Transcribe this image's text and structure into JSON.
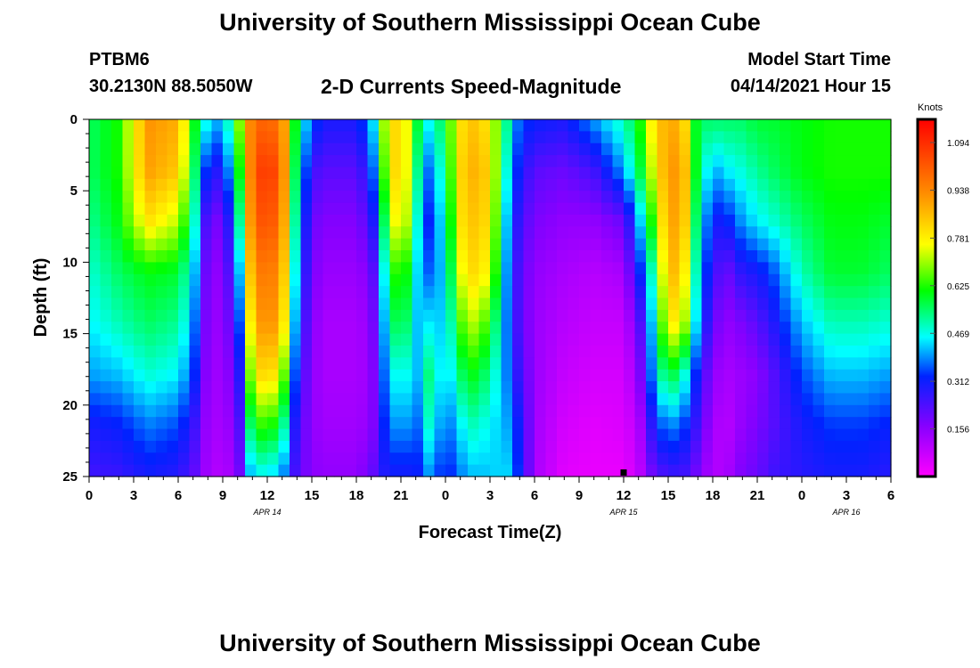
{
  "header": {
    "title": "University of Southern Mississippi Ocean Cube",
    "station_id": "PTBM6",
    "station_coords": "30.2130N  88.5050W",
    "plot_title": "2-D Currents Speed-Magnitude",
    "model_start_label": "Model Start Time",
    "model_start_value": "04/14/2021 Hour 15"
  },
  "footer": {
    "title": "University of Southern Mississippi Ocean Cube"
  },
  "chart_data": {
    "type": "heatmap",
    "xlabel": "Forecast Time(Z)",
    "ylabel": "Depth (ft)",
    "x_range_hours": [
      0,
      54
    ],
    "y_range_ft": [
      0,
      25
    ],
    "y_reversed": true,
    "x_tick_labels": [
      "0",
      "3",
      "6",
      "9",
      "12",
      "15",
      "18",
      "21",
      "0",
      "3",
      "6",
      "9",
      "12",
      "15",
      "18",
      "21",
      "0",
      "3",
      "6"
    ],
    "y_tick_labels": [
      "0",
      "5",
      "10",
      "15",
      "20",
      "25"
    ],
    "y_ticks": [
      0,
      5,
      10,
      15,
      20,
      25
    ],
    "date_labels": [
      {
        "text": "APR 14",
        "hour": 12
      },
      {
        "text": "APR 15",
        "hour": 36
      },
      {
        "text": "APR 16",
        "hour": 51
      }
    ],
    "current_time_hour": 36,
    "colorbar": {
      "unit": "Knots",
      "min": 0.0,
      "max": 1.17,
      "tick_labels": [
        "1.094",
        "0.938",
        "0.781",
        "0.625",
        "0.469",
        "0.312",
        "0.156"
      ],
      "ticks": [
        1.094,
        0.938,
        0.781,
        0.625,
        0.469,
        0.312,
        0.156
      ]
    },
    "grid": false,
    "columns": [
      {
        "x": 0,
        "v": [
          0.55,
          0.55,
          0.52,
          0.48,
          0.45,
          0.4,
          0.3,
          0.25
        ]
      },
      {
        "x": 2,
        "v": [
          0.62,
          0.62,
          0.6,
          0.55,
          0.5,
          0.42,
          0.32,
          0.26
        ]
      },
      {
        "x": 4,
        "v": [
          0.92,
          0.9,
          0.8,
          0.6,
          0.55,
          0.48,
          0.38,
          0.3
        ]
      },
      {
        "x": 6,
        "v": [
          0.88,
          0.84,
          0.72,
          0.58,
          0.52,
          0.45,
          0.35,
          0.28
        ]
      },
      {
        "x": 7,
        "v": [
          0.62,
          0.58,
          0.52,
          0.45,
          0.4,
          0.35,
          0.27,
          0.22
        ]
      },
      {
        "x": 8,
        "v": [
          0.45,
          0.3,
          0.2,
          0.16,
          0.15,
          0.14,
          0.13,
          0.12
        ]
      },
      {
        "x": 9,
        "v": [
          0.4,
          0.28,
          0.18,
          0.15,
          0.14,
          0.13,
          0.12,
          0.1
        ]
      },
      {
        "x": 10,
        "v": [
          0.65,
          0.55,
          0.45,
          0.35,
          0.28,
          0.22,
          0.18,
          0.15
        ]
      },
      {
        "x": 11,
        "v": [
          0.98,
          1.0,
          0.98,
          0.92,
          0.85,
          0.75,
          0.6,
          0.45
        ]
      },
      {
        "x": 12,
        "v": [
          1.0,
          1.1,
          1.05,
          0.98,
          0.95,
          0.85,
          0.65,
          0.45
        ]
      },
      {
        "x": 13,
        "v": [
          0.95,
          0.98,
          0.95,
          0.9,
          0.85,
          0.72,
          0.55,
          0.4
        ]
      },
      {
        "x": 14,
        "v": [
          0.55,
          0.5,
          0.45,
          0.4,
          0.35,
          0.3,
          0.25,
          0.22
        ]
      },
      {
        "x": 15,
        "v": [
          0.35,
          0.25,
          0.2,
          0.18,
          0.16,
          0.15,
          0.15,
          0.16
        ]
      },
      {
        "x": 16,
        "v": [
          0.3,
          0.22,
          0.17,
          0.14,
          0.12,
          0.12,
          0.13,
          0.15
        ]
      },
      {
        "x": 18,
        "v": [
          0.3,
          0.22,
          0.17,
          0.14,
          0.12,
          0.12,
          0.13,
          0.15
        ]
      },
      {
        "x": 19,
        "v": [
          0.4,
          0.32,
          0.25,
          0.18,
          0.15,
          0.14,
          0.15,
          0.2
        ]
      },
      {
        "x": 20,
        "v": [
          0.75,
          0.7,
          0.6,
          0.5,
          0.45,
          0.4,
          0.35,
          0.3
        ]
      },
      {
        "x": 21,
        "v": [
          0.85,
          0.88,
          0.85,
          0.7,
          0.62,
          0.5,
          0.42,
          0.3
        ]
      },
      {
        "x": 22,
        "v": [
          0.6,
          0.55,
          0.5,
          0.45,
          0.42,
          0.4,
          0.35,
          0.3
        ]
      },
      {
        "x": 23,
        "v": [
          0.45,
          0.35,
          0.3,
          0.35,
          0.45,
          0.55,
          0.5,
          0.4
        ]
      },
      {
        "x": 24,
        "v": [
          0.6,
          0.55,
          0.5,
          0.45,
          0.42,
          0.4,
          0.35,
          0.3
        ]
      },
      {
        "x": 25,
        "v": [
          0.8,
          0.82,
          0.8,
          0.75,
          0.65,
          0.55,
          0.45,
          0.38
        ]
      },
      {
        "x": 26,
        "v": [
          0.85,
          0.88,
          0.85,
          0.82,
          0.72,
          0.6,
          0.5,
          0.42
        ]
      },
      {
        "x": 27,
        "v": [
          0.78,
          0.82,
          0.8,
          0.75,
          0.62,
          0.52,
          0.45,
          0.42
        ]
      },
      {
        "x": 28,
        "v": [
          0.55,
          0.5,
          0.45,
          0.42,
          0.4,
          0.4,
          0.42,
          0.45
        ]
      },
      {
        "x": 29,
        "v": [
          0.35,
          0.3,
          0.25,
          0.22,
          0.22,
          0.25,
          0.3,
          0.32
        ]
      },
      {
        "x": 30,
        "v": [
          0.32,
          0.22,
          0.18,
          0.15,
          0.14,
          0.14,
          0.13,
          0.12
        ]
      },
      {
        "x": 32,
        "v": [
          0.3,
          0.2,
          0.15,
          0.12,
          0.1,
          0.08,
          0.06,
          0.04
        ]
      },
      {
        "x": 34,
        "v": [
          0.4,
          0.25,
          0.15,
          0.1,
          0.08,
          0.06,
          0.04,
          0.03
        ]
      },
      {
        "x": 36,
        "v": [
          0.5,
          0.4,
          0.2,
          0.12,
          0.08,
          0.06,
          0.05,
          0.03
        ]
      },
      {
        "x": 37,
        "v": [
          0.6,
          0.55,
          0.4,
          0.3,
          0.2,
          0.15,
          0.1,
          0.08
        ]
      },
      {
        "x": 38,
        "v": [
          0.8,
          0.75,
          0.65,
          0.52,
          0.45,
          0.4,
          0.3,
          0.2
        ]
      },
      {
        "x": 39,
        "v": [
          0.9,
          0.92,
          0.9,
          0.88,
          0.8,
          0.6,
          0.4,
          0.25
        ]
      },
      {
        "x": 40,
        "v": [
          0.85,
          0.9,
          0.88,
          0.82,
          0.75,
          0.5,
          0.35,
          0.25
        ]
      },
      {
        "x": 41,
        "v": [
          0.55,
          0.55,
          0.5,
          0.45,
          0.4,
          0.3,
          0.25,
          0.18
        ]
      },
      {
        "x": 42,
        "v": [
          0.55,
          0.4,
          0.3,
          0.25,
          0.2,
          0.15,
          0.12,
          0.1
        ]
      },
      {
        "x": 43,
        "v": [
          0.55,
          0.45,
          0.32,
          0.2,
          0.15,
          0.12,
          0.1,
          0.12
        ]
      },
      {
        "x": 44,
        "v": [
          0.55,
          0.48,
          0.4,
          0.28,
          0.18,
          0.14,
          0.15,
          0.18
        ]
      },
      {
        "x": 45,
        "v": [
          0.58,
          0.52,
          0.45,
          0.3,
          0.22,
          0.16,
          0.18,
          0.2
        ]
      },
      {
        "x": 46,
        "v": [
          0.58,
          0.55,
          0.48,
          0.35,
          0.28,
          0.22,
          0.22,
          0.25
        ]
      },
      {
        "x": 48,
        "v": [
          0.6,
          0.6,
          0.55,
          0.5,
          0.42,
          0.35,
          0.3,
          0.28
        ]
      },
      {
        "x": 50,
        "v": [
          0.62,
          0.62,
          0.6,
          0.58,
          0.5,
          0.42,
          0.34,
          0.3
        ]
      },
      {
        "x": 52,
        "v": [
          0.62,
          0.62,
          0.6,
          0.58,
          0.5,
          0.42,
          0.34,
          0.3
        ]
      },
      {
        "x": 54,
        "v": [
          0.62,
          0.62,
          0.58,
          0.55,
          0.48,
          0.4,
          0.32,
          0.28
        ]
      }
    ]
  }
}
